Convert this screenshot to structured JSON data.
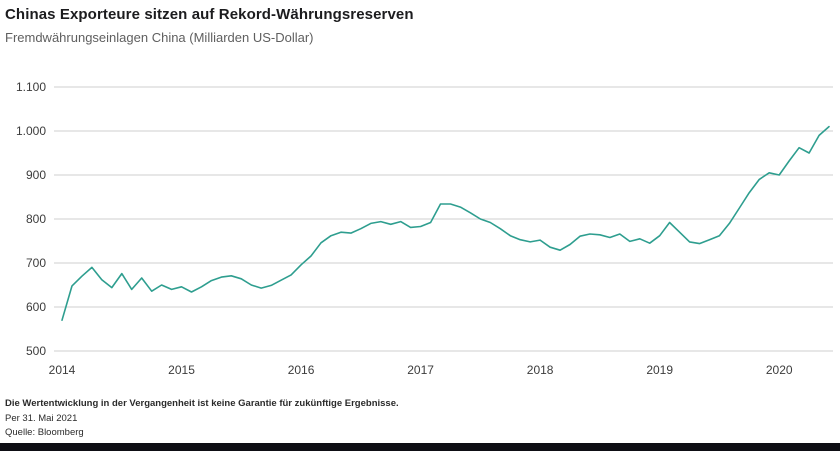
{
  "header": {
    "title": "Chinas Exporteure sitzen auf Rekord-Währungsreserven",
    "subtitle": "Fremdwährungseinlagen China (Milliarden US-Dollar)"
  },
  "footer": {
    "disclaimer": "Die Wertentwicklung in der Vergangenheit ist keine Garantie für zukünftige Ergebnisse.",
    "as_of": "Per 31. Mai 2021",
    "source": "Quelle: Bloomberg"
  },
  "colors": {
    "line": "#2e9e8f",
    "grid": "#cfcfcf",
    "axis_text": "#3c3c3c",
    "title_text": "#1c1c1e",
    "subtitle_text": "#5f5f5f",
    "footer_text": "#2b2b2b",
    "bottom_bar": "#0e0e14",
    "background": "#ffffff"
  },
  "chart_data": {
    "type": "line",
    "title": "Chinas Exporteure sitzen auf Rekord-Währungsreserven",
    "subtitle": "Fremdwährungseinlagen China (Milliarden US-Dollar)",
    "series_name": "Fremdwährungseinlagen China",
    "unit": "Milliarden US-Dollar",
    "x_start_year": 2014,
    "x_interval": "monthly",
    "values": [
      570,
      648,
      670,
      690,
      662,
      644,
      676,
      640,
      666,
      636,
      650,
      640,
      646,
      634,
      646,
      660,
      668,
      671,
      664,
      650,
      643,
      649,
      661,
      673,
      696,
      716,
      746,
      762,
      770,
      768,
      778,
      790,
      794,
      788,
      794,
      781,
      783,
      792,
      834,
      834,
      827,
      814,
      800,
      792,
      778,
      762,
      753,
      748,
      752,
      736,
      729,
      742,
      761,
      766,
      764,
      758,
      766,
      749,
      755,
      745,
      762,
      792,
      770,
      748,
      744,
      753,
      762,
      790,
      825,
      860,
      890,
      905,
      900,
      932,
      962,
      950,
      990,
      1010
    ],
    "y_ticks": [
      {
        "value": 1100,
        "label": "1.100"
      },
      {
        "value": 1000,
        "label": "1.000"
      },
      {
        "value": 900,
        "label": "900"
      },
      {
        "value": 800,
        "label": "800"
      },
      {
        "value": 700,
        "label": "700"
      },
      {
        "value": 600,
        "label": "600"
      },
      {
        "value": 500,
        "label": "500"
      }
    ],
    "x_ticks": [
      {
        "value": 2014,
        "label": "2014"
      },
      {
        "value": 2015,
        "label": "2015"
      },
      {
        "value": 2016,
        "label": "2016"
      },
      {
        "value": 2017,
        "label": "2017"
      },
      {
        "value": 2018,
        "label": "2018"
      },
      {
        "value": 2019,
        "label": "2019"
      },
      {
        "value": 2020,
        "label": "2020"
      }
    ],
    "ylim": [
      500,
      1100
    ],
    "xlim": [
      2014,
      2020.45
    ],
    "grid": "horizontal",
    "legend": "none"
  }
}
